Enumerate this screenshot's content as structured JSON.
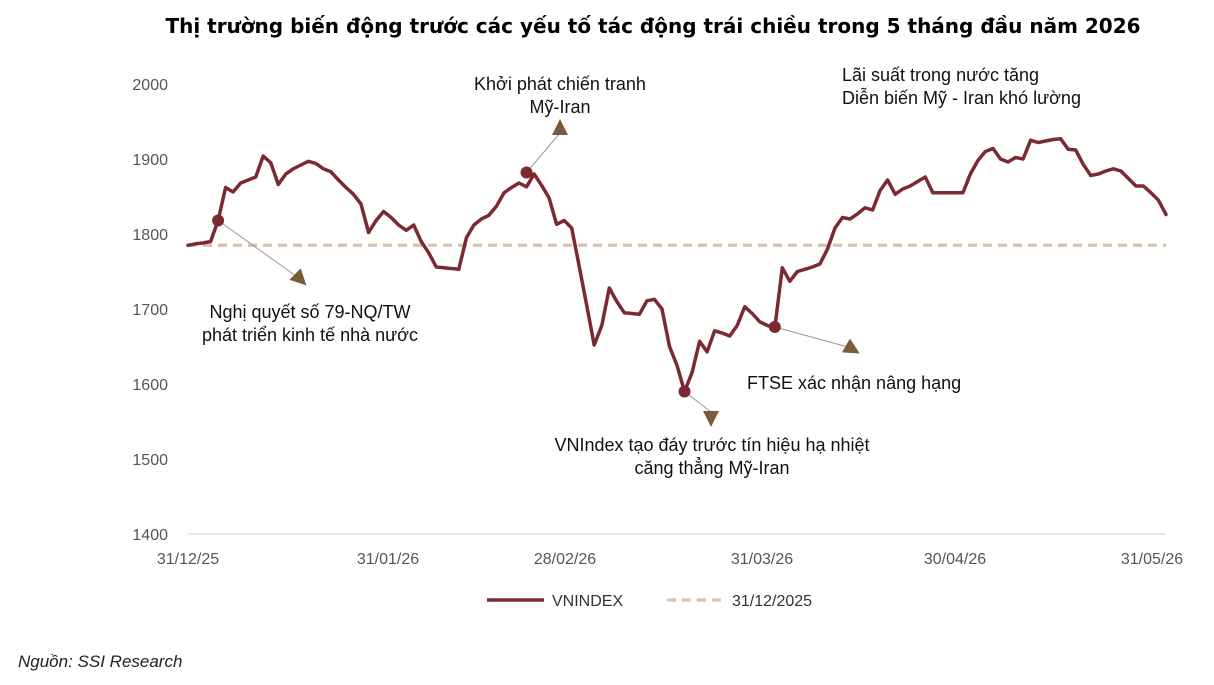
{
  "chart_data": {
    "type": "line",
    "title": "Thị trường biến động trước các yếu tố tác động trái chiều trong 5 tháng đầu năm 2026",
    "xlabel": "",
    "ylabel": "",
    "ylim": [
      1400,
      2000
    ],
    "yticks": [
      1400,
      1500,
      1600,
      1700,
      1800,
      1900,
      2000
    ],
    "xticks": [
      "31/12/25",
      "31/01/26",
      "28/02/26",
      "31/03/26",
      "30/04/26",
      "31/05/26"
    ],
    "grid": false,
    "legend_position": "bottom",
    "colors": {
      "vnindex": "#7B2A33",
      "baseline": "#D9C4AA",
      "arrow": "#7A5C3A"
    },
    "series": [
      {
        "name": "VNINDEX",
        "style": "solid",
        "values": [
          1785,
          1787,
          1788,
          1790,
          1818,
          1862,
          1856,
          1868,
          1872,
          1876,
          1904,
          1895,
          1866,
          1880,
          1887,
          1892,
          1897,
          1894,
          1887,
          1883,
          1872,
          1862,
          1853,
          1840,
          1802,
          1818,
          1830,
          1822,
          1812,
          1805,
          1812,
          1790,
          1775,
          1756,
          1755,
          1754,
          1753,
          1795,
          1812,
          1820,
          1825,
          1837,
          1855,
          1862,
          1868,
          1863,
          1880,
          1865,
          1848,
          1813,
          1818,
          1808,
          1757,
          1705,
          1652,
          1678,
          1728,
          1710,
          1695,
          1694,
          1693,
          1711,
          1713,
          1700,
          1650,
          1625,
          1590,
          1615,
          1657,
          1643,
          1671,
          1668,
          1664,
          1678,
          1703,
          1694,
          1683,
          1678,
          1675,
          1755,
          1737,
          1750,
          1753,
          1756,
          1760,
          1780,
          1808,
          1822,
          1820,
          1827,
          1835,
          1832,
          1858,
          1872,
          1853,
          1860,
          1864,
          1870,
          1876,
          1855,
          1855,
          1855,
          1855,
          1855,
          1880,
          1898,
          1910,
          1914,
          1900,
          1896,
          1902,
          1900,
          1925,
          1922,
          1924,
          1926,
          1927,
          1913,
          1912,
          1893,
          1878,
          1880,
          1884,
          1887,
          1884,
          1874,
          1864,
          1864,
          1855,
          1845,
          1826
        ]
      },
      {
        "name": "31/12/2025",
        "style": "dashed",
        "value": 1785
      }
    ],
    "annotations": [
      {
        "id": "a1",
        "lines": [
          "Nghị quyết số 79-NQ/TW",
          "phát triển kinh tế nhà nước"
        ],
        "point": {
          "date_index": 4,
          "value": 1818
        }
      },
      {
        "id": "a2",
        "lines": [
          "Khởi phát chiến tranh",
          "Mỹ-Iran"
        ],
        "point": {
          "date_index": 45,
          "value": 1882
        }
      },
      {
        "id": "a3",
        "lines": [
          "VNIndex tạo đáy trước tín hiệu hạ nhiệt",
          "căng thẳng Mỹ-Iran"
        ],
        "point": {
          "date_index": 66,
          "value": 1590
        }
      },
      {
        "id": "a4",
        "lines": [
          "FTSE xác nhận nâng hạng"
        ],
        "point": {
          "date_index": 78,
          "value": 1676
        }
      },
      {
        "id": "a5",
        "lines": [
          "Lãi suất trong nước tăng",
          "Diễn biến Mỹ - Iran khó lường"
        ],
        "point": null
      }
    ]
  },
  "source": "Nguồn: SSI Research"
}
